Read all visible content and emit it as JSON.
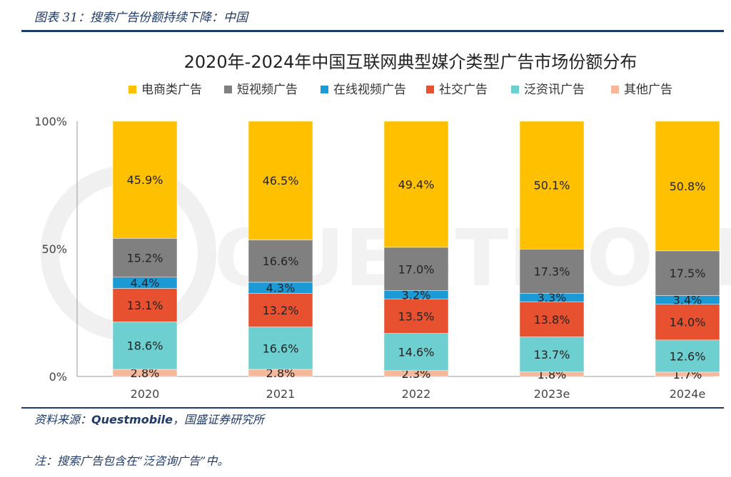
{
  "caption": "图表 31：搜索广告份额持续下降：中国",
  "source_prefix": "资料来源：",
  "source_name": "Questmobile",
  "source_suffix": "，国盛证券研究所",
  "note": "注：搜索广告包含在“泛咨询广告”中。",
  "watermark_text": "QUESTMOBILE",
  "chart_data": {
    "type": "bar",
    "stacked": true,
    "title": "2020年-2024年中国互联网典型媒介类型广告市场份额分布",
    "categories": [
      "2020",
      "2021",
      "2022",
      "2023e",
      "2024e"
    ],
    "ylim": [
      0,
      100
    ],
    "yticks": [
      "0%",
      "50%",
      "100%"
    ],
    "legend_position": "top",
    "series": [
      {
        "name": "电商类广告",
        "color": "#ffc000",
        "values": [
          45.9,
          46.5,
          49.4,
          50.1,
          50.8
        ]
      },
      {
        "name": "短视频广告",
        "color": "#808080",
        "values": [
          15.2,
          16.6,
          17.0,
          17.3,
          17.5
        ]
      },
      {
        "name": "在线视频广告",
        "color": "#1b9ad6",
        "values": [
          4.4,
          4.3,
          3.2,
          3.3,
          3.4
        ]
      },
      {
        "name": "社交广告",
        "color": "#e8512f",
        "values": [
          13.1,
          13.2,
          13.5,
          13.8,
          14.0
        ]
      },
      {
        "name": "泛资讯广告",
        "color": "#6dcfd0",
        "values": [
          18.6,
          16.6,
          14.6,
          13.7,
          12.6
        ]
      },
      {
        "name": "其他广告",
        "color": "#f6b89a",
        "values": [
          2.8,
          2.8,
          2.3,
          1.8,
          1.7
        ]
      }
    ],
    "value_labels": [
      [
        "45.9%",
        "46.5%",
        "49.4%",
        "50.1%",
        "50.8%"
      ],
      [
        "15.2%",
        "16.6%",
        "17.0%",
        "17.3%",
        "17.5%"
      ],
      [
        "4.4%",
        "4.3%",
        "3.2%",
        "3.3%",
        "3.4%"
      ],
      [
        "13.1%",
        "13.2%",
        "13.5%",
        "13.8%",
        "14.0%"
      ],
      [
        "18.6%",
        "16.6%",
        "14.6%",
        "13.7%",
        "12.6%"
      ],
      [
        "2.8%",
        "2.8%",
        "2.3%",
        "1.8%",
        "1.7%"
      ]
    ]
  }
}
